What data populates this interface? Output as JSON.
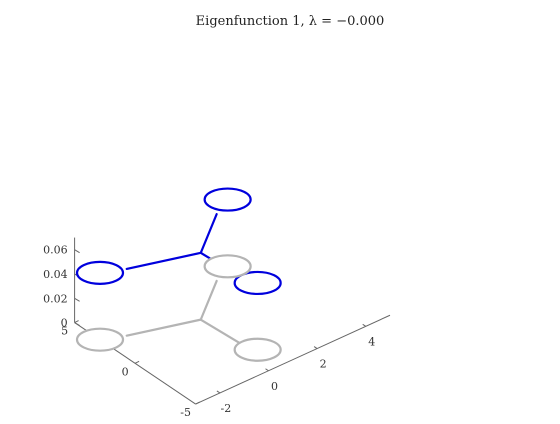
{
  "chart_data": {
    "type": "line",
    "title": "Eigenfunction 1, λ = −0.000",
    "grid": false,
    "view": "3d",
    "xlabel": "",
    "ylabel": "",
    "zlabel": "",
    "xlim": [
      -3,
      5
    ],
    "ylim": [
      -5,
      5
    ],
    "zlim": [
      0,
      0.07
    ],
    "xticks": [
      -2,
      0,
      2,
      4
    ],
    "xtick_labels": [
      "-2",
      "0",
      "2",
      "4"
    ],
    "yticks": [
      -5,
      0,
      5
    ],
    "ytick_labels": [
      "-5",
      "0",
      "5"
    ],
    "zticks": [
      0,
      0.02,
      0.04,
      0.06
    ],
    "ztick_labels": [
      "0",
      "0.02",
      "0.04",
      "0.06"
    ],
    "graph": {
      "description_of_structure": "star graph: a center vertex joined by three edges to three loops",
      "center": [
        0.2,
        1.0
      ],
      "edge_ends": [
        [
          -2.2,
          2.3
        ],
        [
          2.0,
          3.3
        ],
        [
          0.3,
          -2.0
        ]
      ],
      "loop_centers": [
        [
          -3.0,
          2.9
        ],
        [
          2.8,
          4.0
        ],
        [
          0.5,
          -3.1
        ]
      ]
    },
    "series": [
      {
        "role": "eigenfunction",
        "color": "#0000dd",
        "z": 0.055
      },
      {
        "role": "base-graph",
        "color": "#b4b4b4",
        "z": 0
      }
    ]
  }
}
